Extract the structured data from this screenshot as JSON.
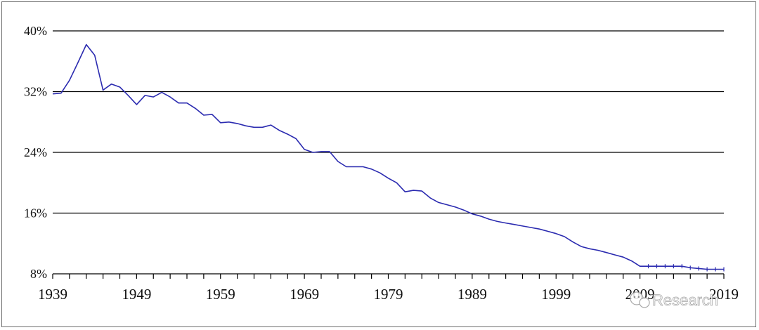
{
  "chart_data": {
    "type": "line",
    "title": "",
    "xlabel": "",
    "ylabel": "",
    "xlim": [
      1939,
      2019
    ],
    "ylim": [
      8,
      40
    ],
    "x_tick_labels": [
      "1939",
      "1949",
      "1959",
      "1969",
      "1979",
      "1989",
      "1999",
      "2009",
      "2019"
    ],
    "x_tick_values": [
      1939,
      1949,
      1959,
      1969,
      1979,
      1989,
      1999,
      2009,
      2019
    ],
    "y_tick_labels": [
      "40%",
      "32%",
      "24%",
      "16%",
      "8%"
    ],
    "y_tick_values": [
      40,
      32,
      24,
      16,
      8
    ],
    "grid": "horizontal",
    "line_color": "#2b2bb0",
    "series": [
      {
        "x": [
          1939,
          1940,
          1941,
          1942,
          1943,
          1944,
          1945,
          1946,
          1947,
          1948,
          1949,
          1950,
          1951,
          1952,
          1953,
          1954,
          1955,
          1956,
          1957,
          1958,
          1959,
          1960,
          1961,
          1962,
          1963,
          1964,
          1965,
          1966,
          1967,
          1968,
          1969,
          1970,
          1971,
          1972,
          1973,
          1974,
          1975,
          1976,
          1977,
          1978,
          1979,
          1980,
          1981,
          1982,
          1983,
          1984,
          1985,
          1986,
          1987,
          1988,
          1989,
          1990,
          1991,
          1992,
          1993,
          1994,
          1995,
          1996,
          1997,
          1998,
          1999,
          2000,
          2001,
          2002,
          2003,
          2004,
          2005,
          2006,
          2007,
          2008,
          2009,
          2010,
          2011,
          2012,
          2013,
          2014,
          2015,
          2016,
          2017,
          2018,
          2019
        ],
        "values": [
          31.7,
          31.8,
          33.5,
          35.8,
          38.2,
          36.8,
          32.2,
          33.0,
          32.6,
          31.5,
          30.3,
          31.5,
          31.3,
          31.9,
          31.3,
          30.5,
          30.5,
          29.8,
          28.9,
          29.0,
          27.9,
          28.0,
          27.8,
          27.5,
          27.3,
          27.3,
          27.6,
          26.9,
          26.4,
          25.8,
          24.4,
          24.0,
          24.1,
          24.1,
          22.8,
          22.1,
          22.1,
          22.1,
          21.8,
          21.3,
          20.6,
          20.0,
          18.8,
          19.0,
          18.9,
          18.0,
          17.4,
          17.1,
          16.8,
          16.4,
          15.9,
          15.6,
          15.2,
          14.9,
          14.7,
          14.5,
          14.3,
          14.1,
          13.9,
          13.6,
          13.3,
          12.9,
          12.2,
          11.6,
          11.3,
          11.1,
          10.8,
          10.5,
          10.2,
          9.7,
          9.0,
          9.0,
          9.0,
          9.0,
          9.0,
          9.0,
          8.8,
          8.7,
          8.6,
          8.6,
          8.6
        ]
      }
    ]
  },
  "watermark": {
    "text": "Research"
  }
}
